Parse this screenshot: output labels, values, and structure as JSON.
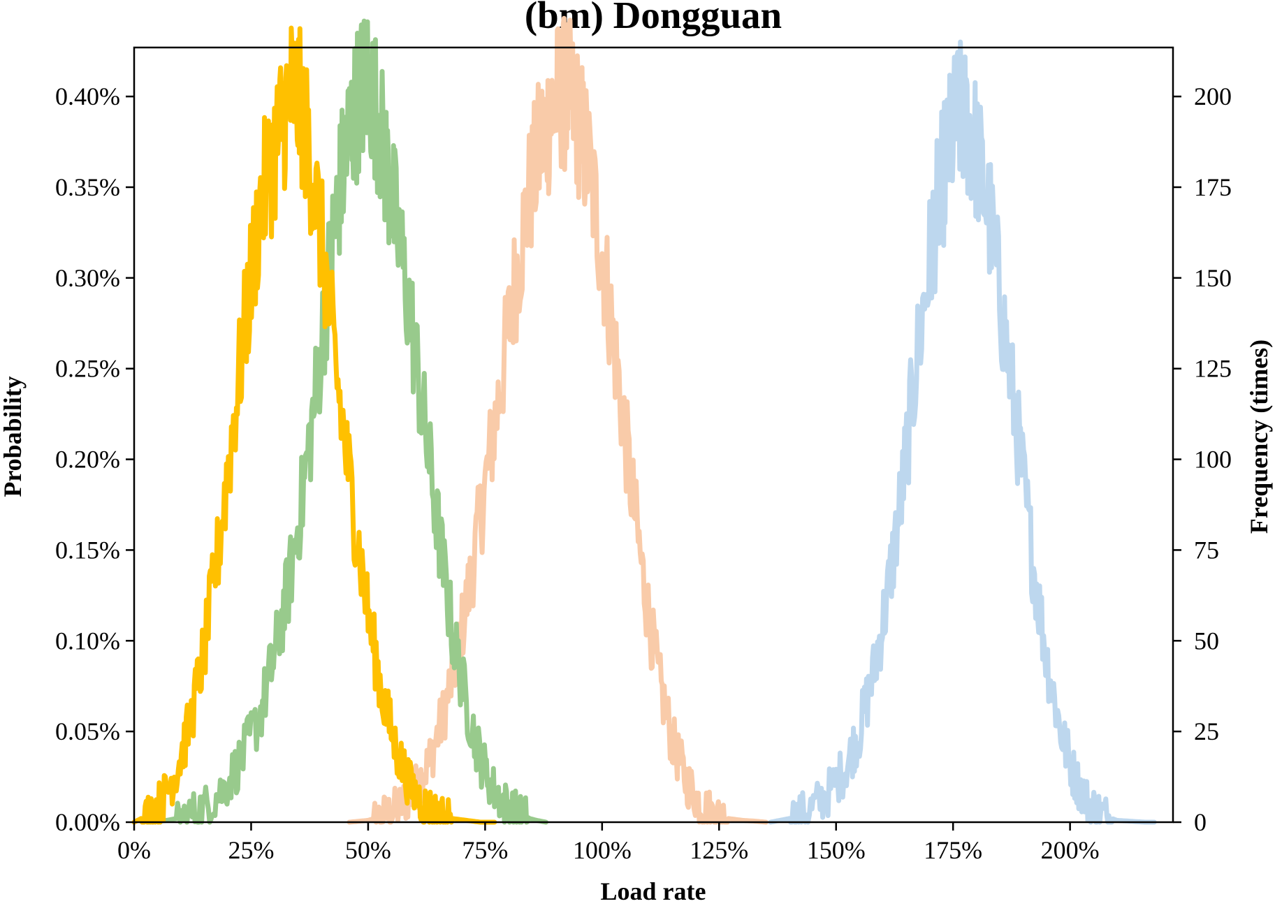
{
  "chart_data": {
    "type": "line",
    "title": "(bm) Dongguan",
    "xlabel": "Load rate",
    "ylabel": "Probability",
    "y2label": "Frequency (times)",
    "xlim": [
      0,
      2.22
    ],
    "ylim": [
      0,
      0.00427
    ],
    "y2lim": [
      0,
      213.5
    ],
    "x_ticks": [
      0,
      0.25,
      0.5,
      0.75,
      1.0,
      1.25,
      1.5,
      1.75,
      2.0
    ],
    "x_tick_labels": [
      "0%",
      "25%",
      "50%",
      "75%",
      "100%",
      "125%",
      "150%",
      "175%",
      "200%"
    ],
    "y_ticks": [
      0,
      0.0005,
      0.001,
      0.0015,
      0.002,
      0.0025,
      0.003,
      0.0035,
      0.004
    ],
    "y_tick_labels": [
      "0.00%",
      "0.05%",
      "0.10%",
      "0.15%",
      "0.20%",
      "0.25%",
      "0.30%",
      "0.35%",
      "0.40%"
    ],
    "y2_ticks": [
      0,
      25,
      50,
      75,
      100,
      125,
      150,
      175,
      200
    ],
    "y2_tick_labels": [
      "0",
      "25",
      "50",
      "75",
      "100",
      "125",
      "150",
      "175",
      "200"
    ],
    "grid": false,
    "legend": "none",
    "series": [
      {
        "color": "#F9CBA9",
        "x": [
          0.46,
          0.5,
          0.54,
          0.57,
          0.6,
          0.63,
          0.66,
          0.69,
          0.72,
          0.75,
          0.78,
          0.81,
          0.84,
          0.87,
          0.89,
          0.91,
          0.93,
          0.95,
          0.97,
          1.0,
          1.03,
          1.06,
          1.09,
          1.12,
          1.15,
          1.18,
          1.21,
          1.24,
          1.27,
          1.3,
          1.33,
          1.35
        ],
        "y": [
          0,
          1e-05,
          4e-05,
          9e-05,
          0.00018,
          0.00033,
          0.00058,
          0.00092,
          0.00135,
          0.00185,
          0.00235,
          0.0029,
          0.0034,
          0.00375,
          0.0039,
          0.00402,
          0.004,
          0.00385,
          0.00365,
          0.00315,
          0.00255,
          0.0019,
          0.0013,
          0.0008,
          0.00045,
          0.00023,
          0.0001,
          4e-05,
          2e-05,
          1e-05,
          5e-06,
          0
        ]
      },
      {
        "color": "#BDD7EE",
        "x": [
          1.36,
          1.4,
          1.44,
          1.48,
          1.52,
          1.55,
          1.58,
          1.61,
          1.64,
          1.67,
          1.7,
          1.72,
          1.74,
          1.76,
          1.78,
          1.8,
          1.83,
          1.86,
          1.89,
          1.92,
          1.95,
          1.98,
          2.01,
          2.04,
          2.07,
          2.1,
          2.13,
          2.16,
          2.18
        ],
        "y": [
          0,
          2e-05,
          6e-05,
          0.00015,
          0.0003,
          0.0005,
          0.00082,
          0.00125,
          0.0018,
          0.0025,
          0.0031,
          0.00345,
          0.0037,
          0.0039,
          0.00385,
          0.0037,
          0.0033,
          0.0027,
          0.0021,
          0.00145,
          0.0009,
          0.0005,
          0.00025,
          0.0001,
          4e-05,
          1e-05,
          5e-06,
          0,
          0
        ]
      },
      {
        "color": "#98CA8C",
        "x": [
          0.03,
          0.07,
          0.11,
          0.15,
          0.19,
          0.23,
          0.27,
          0.3,
          0.33,
          0.36,
          0.39,
          0.42,
          0.44,
          0.46,
          0.48,
          0.5,
          0.52,
          0.54,
          0.56,
          0.59,
          0.62,
          0.65,
          0.68,
          0.71,
          0.74,
          0.77,
          0.8,
          0.83,
          0.86,
          0.88
        ],
        "y": [
          0,
          1e-05,
          3e-05,
          8e-05,
          0.00018,
          0.00035,
          0.0006,
          0.00092,
          0.0013,
          0.0018,
          0.0024,
          0.0031,
          0.0035,
          0.0038,
          0.004,
          0.0041,
          0.0039,
          0.0036,
          0.0033,
          0.0028,
          0.0022,
          0.0016,
          0.00105,
          0.00065,
          0.00035,
          0.00017,
          8e-05,
          3e-05,
          1e-05,
          0
        ]
      },
      {
        "color": "#FFC000",
        "x": [
          0.0,
          0.03,
          0.06,
          0.09,
          0.12,
          0.15,
          0.18,
          0.21,
          0.24,
          0.27,
          0.3,
          0.32,
          0.34,
          0.36,
          0.38,
          0.41,
          0.44,
          0.47,
          0.5,
          0.53,
          0.56,
          0.59,
          0.62,
          0.65,
          0.68,
          0.71,
          0.74,
          0.77
        ],
        "y": [
          0,
          4e-05,
          0.00012,
          0.00028,
          0.00055,
          0.00095,
          0.0015,
          0.00215,
          0.0028,
          0.0034,
          0.0037,
          0.0039,
          0.00405,
          0.0039,
          0.0036,
          0.003,
          0.0023,
          0.0017,
          0.00115,
          0.0007,
          0.0004,
          0.0002,
          9e-05,
          4e-05,
          2e-05,
          1e-05,
          0,
          0
        ]
      }
    ]
  }
}
